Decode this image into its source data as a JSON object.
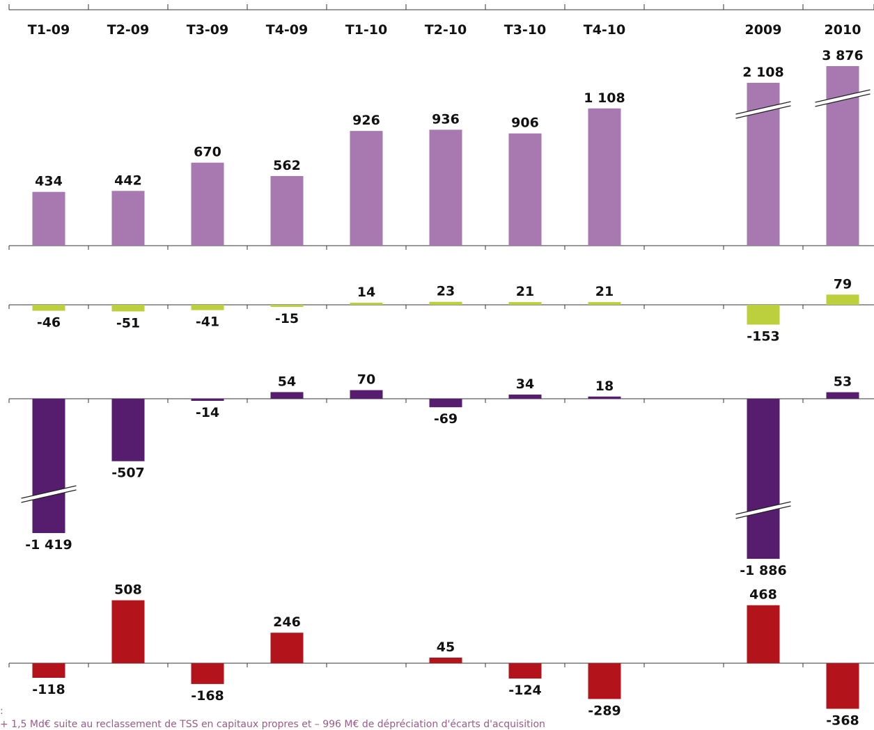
{
  "chart_data": {
    "type": "bar",
    "categories": [
      "T1-09",
      "T2-09",
      "T3-09",
      "T4-09",
      "T1-10",
      "T2-10",
      "T3-10",
      "T4-10",
      "",
      "2009",
      "2010"
    ],
    "panels": [
      {
        "color": "#a779b0",
        "values": [
          434,
          442,
          670,
          562,
          926,
          936,
          906,
          1108,
          null,
          2108,
          3876
        ],
        "labels": [
          "434",
          "442",
          "670",
          "562",
          "926",
          "936",
          "906",
          "1 108",
          "",
          "2 108",
          "3 876"
        ],
        "axis_breaks_on": [
          "2009",
          "2010"
        ]
      },
      {
        "color": "#bccf3c",
        "values": [
          -46,
          -51,
          -41,
          -15,
          14,
          23,
          21,
          21,
          null,
          -153,
          79
        ],
        "labels": [
          "-46",
          "-51",
          "-41",
          "-15",
          "14",
          "23",
          "21",
          "21",
          "",
          "-153",
          "79"
        ],
        "axis_breaks_on": []
      },
      {
        "color": "#561c6e",
        "values": [
          -1419,
          -507,
          -14,
          54,
          70,
          -69,
          34,
          18,
          null,
          -1886,
          53
        ],
        "labels": [
          "-1 419",
          "-507",
          "-14",
          "54",
          "70",
          "-69",
          "34",
          "18",
          "",
          "-1 886",
          "53"
        ],
        "axis_breaks_on": [
          "T1-09",
          "2009"
        ]
      },
      {
        "color": "#b3141b",
        "values": [
          -118,
          508,
          -168,
          246,
          null,
          45,
          -124,
          -289,
          null,
          468,
          -368
        ],
        "labels": [
          "-118",
          "508",
          "-168",
          "246",
          "",
          "45",
          "-124",
          "-289",
          "",
          "468",
          "-368"
        ],
        "axis_breaks_on": []
      }
    ]
  },
  "footnote": {
    "line1": ":",
    "line2": "+ 1,5 Md€ suite au reclassement de TSS en capitaux propres et – 996 M€ de dépréciation d'écarts d'acquisition"
  }
}
